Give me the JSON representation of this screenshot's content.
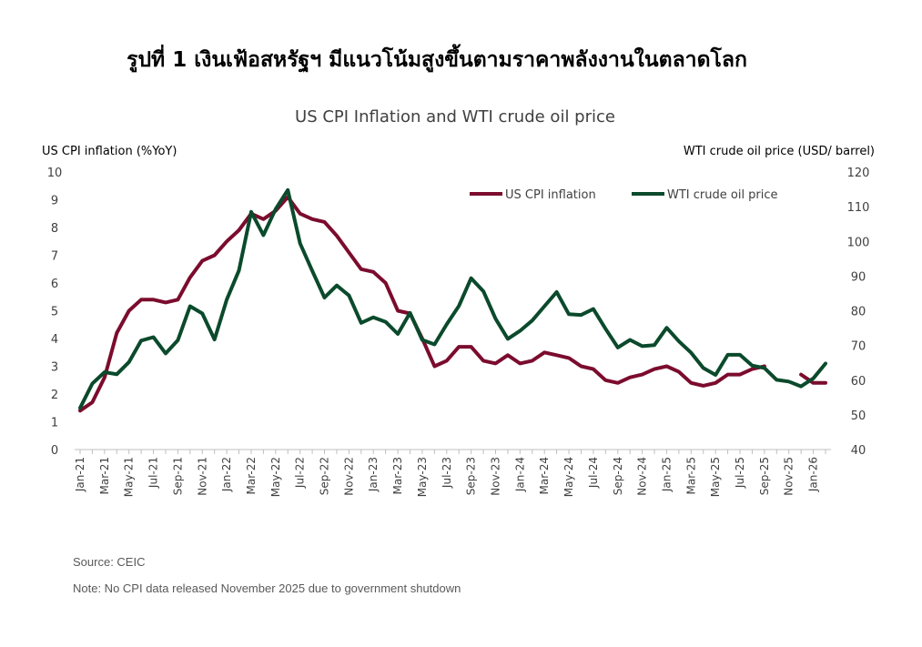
{
  "figure_title": "รูปที่ 1 เงินเฟ้อสหรัฐฯ มีแนวโน้มสูงขึ้นตามราคาพลังงานในตลาดโลก",
  "source": "Source: CEIC",
  "note": "Note: No CPI data released November 2025 due to government shutdown",
  "colors": {
    "cpi": "#7B0C2E",
    "wti": "#0B4A2C",
    "axis": "#595959",
    "text": "#404040"
  },
  "chart_data": {
    "type": "line",
    "title": "US CPI Inflation and WTI crude oil price",
    "ylabel_left": "US CPI inflation (%YoY)",
    "ylabel_right": "WTI crude oil price (USD/ barrel)",
    "ylim_left": [
      0,
      10
    ],
    "ylim_right": [
      40,
      120
    ],
    "yticks_left": [
      "0",
      "1",
      "2",
      "3",
      "4",
      "5",
      "6",
      "7",
      "8",
      "9",
      "10"
    ],
    "yticks_right": [
      "40",
      "50",
      "60",
      "70",
      "80",
      "90",
      "100",
      "110",
      "120"
    ],
    "legend_position": "top-right",
    "x_tick_labels": [
      "Jan-21",
      "Mar-21",
      "May-21",
      "Jul-21",
      "Sep-21",
      "Nov-21",
      "Jan-22",
      "Mar-22",
      "May-22",
      "Jul-22",
      "Sep-22",
      "Nov-22",
      "Jan-23",
      "Mar-23",
      "May-23",
      "Jul-23",
      "Sep-23",
      "Nov-23",
      "Jan-24",
      "Mar-24",
      "May-24",
      "Jul-24",
      "Sep-24",
      "Nov-24",
      "Jan-25",
      "Mar-25",
      "May-25",
      "Jul-25",
      "Sep-25",
      "Nov-25",
      "Jan-26"
    ],
    "x_tick_every": 2,
    "months": [
      "Jan-21",
      "Feb-21",
      "Mar-21",
      "Apr-21",
      "May-21",
      "Jun-21",
      "Jul-21",
      "Aug-21",
      "Sep-21",
      "Oct-21",
      "Nov-21",
      "Dec-21",
      "Jan-22",
      "Feb-22",
      "Mar-22",
      "Apr-22",
      "May-22",
      "Jun-22",
      "Jul-22",
      "Aug-22",
      "Sep-22",
      "Oct-22",
      "Nov-22",
      "Dec-22",
      "Jan-23",
      "Feb-23",
      "Mar-23",
      "Apr-23",
      "May-23",
      "Jun-23",
      "Jul-23",
      "Aug-23",
      "Sep-23",
      "Oct-23",
      "Nov-23",
      "Dec-23",
      "Jan-24",
      "Feb-24",
      "Mar-24",
      "Apr-24",
      "May-24",
      "Jun-24",
      "Jul-24",
      "Aug-24",
      "Sep-24",
      "Oct-24",
      "Nov-24",
      "Dec-24",
      "Jan-25",
      "Feb-25",
      "Mar-25",
      "Apr-25",
      "May-25",
      "Jun-25",
      "Jul-25",
      "Aug-25",
      "Sep-25",
      "Oct-25",
      "Nov-25",
      "Dec-25",
      "Jan-26",
      "Feb-26"
    ],
    "series": [
      {
        "name": "US CPI inflation",
        "axis": "left",
        "values": [
          1.4,
          1.7,
          2.6,
          4.2,
          5.0,
          5.4,
          5.4,
          5.3,
          5.4,
          6.2,
          6.8,
          7.0,
          7.5,
          7.9,
          8.5,
          8.3,
          8.6,
          9.1,
          8.5,
          8.3,
          8.2,
          7.7,
          7.1,
          6.5,
          6.4,
          6.0,
          5.0,
          4.9,
          4.0,
          3.0,
          3.2,
          3.7,
          3.7,
          3.2,
          3.1,
          3.4,
          3.1,
          3.2,
          3.5,
          3.4,
          3.3,
          3.0,
          2.9,
          2.5,
          2.4,
          2.6,
          2.7,
          2.9,
          3.0,
          2.8,
          2.4,
          2.3,
          2.4,
          2.7,
          2.7,
          2.9,
          3.0,
          null,
          null,
          2.7,
          2.4,
          2.4
        ]
      },
      {
        "name": "WTI crude oil price",
        "axis": "right",
        "values": [
          52,
          59,
          62.3,
          61.7,
          65.2,
          71.4,
          72.4,
          67.7,
          71.5,
          81.3,
          79.2,
          71.7,
          83.2,
          91.6,
          108.5,
          101.8,
          109.3,
          114.8,
          99.4,
          91.5,
          83.8,
          87.3,
          84.4,
          76.5,
          78.1,
          76.8,
          73.3,
          79.4,
          71.6,
          70.3,
          76.1,
          81.4,
          89.4,
          85.6,
          77.7,
          71.9,
          74.2,
          77.2,
          81.3,
          85.4,
          79.0,
          78.8,
          80.5,
          74.8,
          69.4,
          71.6,
          69.8,
          70.1,
          75.1,
          71.2,
          67.9,
          63.5,
          61.5,
          67.3,
          67.3,
          64.2,
          63.5,
          60.1,
          59.6,
          58.2,
          60.5,
          64.8
        ]
      }
    ]
  }
}
